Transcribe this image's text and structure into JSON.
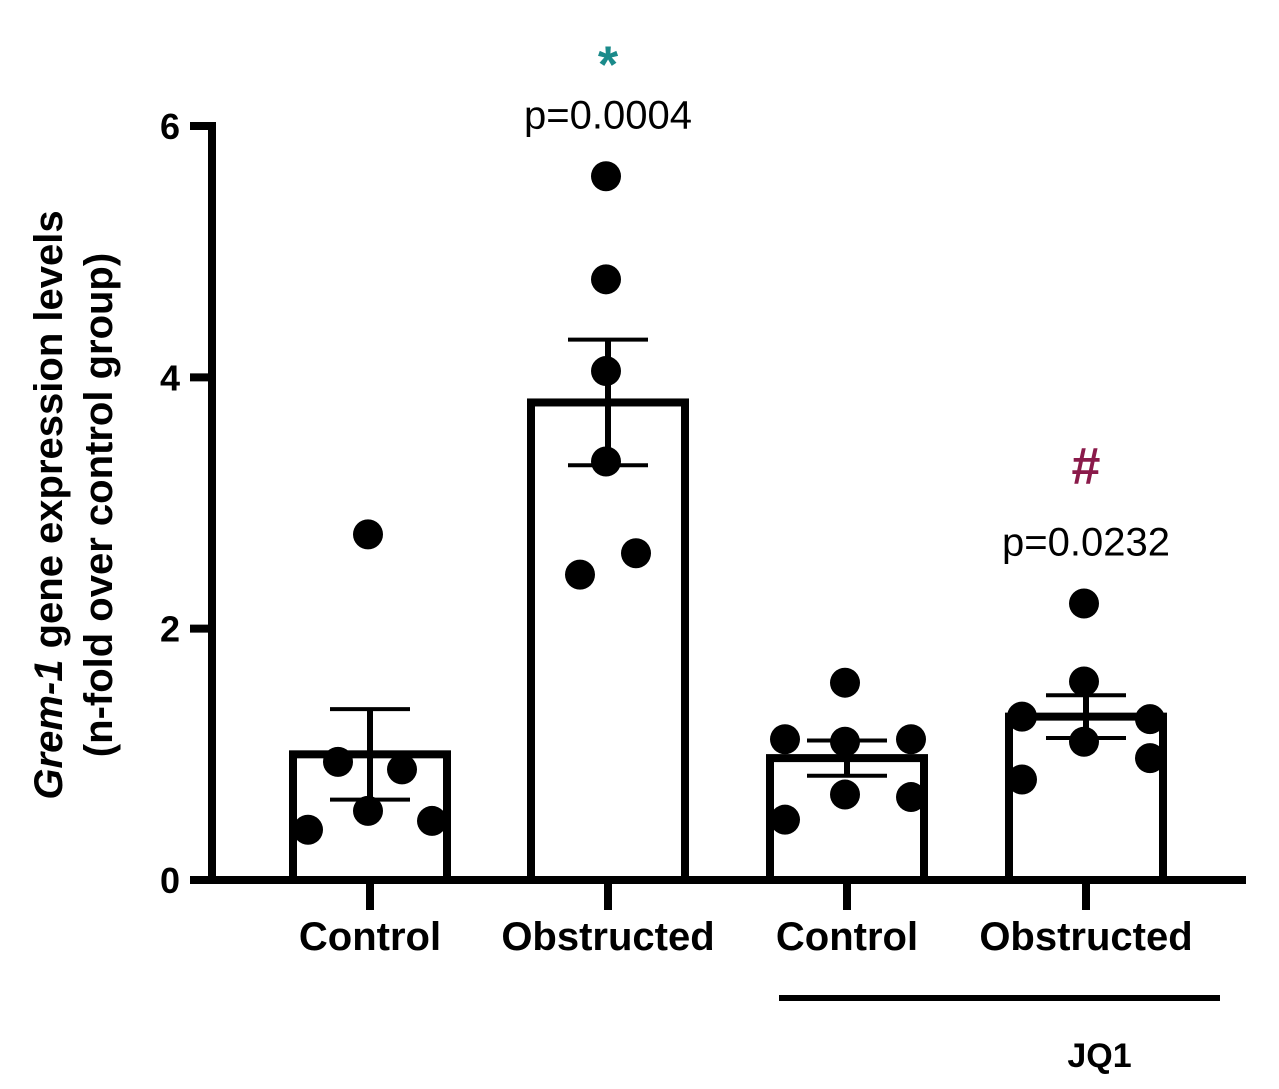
{
  "chart_data": {
    "type": "bar",
    "title": "",
    "xlabel": "",
    "ylabel_italic": "Grem-1",
    "ylabel_rest": " gene expression levels",
    "ylabel_line2": "(n-fold over control group)",
    "ylim": [
      0,
      6
    ],
    "yticks": [
      0,
      2,
      4,
      6
    ],
    "categories": [
      "Control",
      "Obstructed",
      "Control",
      "Obstructed"
    ],
    "values": [
      1.0,
      3.8,
      0.97,
      1.3
    ],
    "sem": [
      0.36,
      0.5,
      0.14,
      0.17
    ],
    "points": [
      [
        0.4,
        0.55,
        0.94,
        0.88,
        0.47,
        2.75
      ],
      [
        2.43,
        3.33,
        4.05,
        4.78,
        5.6,
        2.6
      ],
      [
        0.48,
        1.12,
        0.68,
        1.1,
        1.57,
        0.66,
        1.12
      ],
      [
        0.8,
        1.3,
        1.1,
        1.58,
        2.2,
        1.28,
        0.97
      ]
    ],
    "group_label": "JQ1",
    "group_span": [
      2,
      3
    ],
    "annotations": [
      {
        "category_index": 1,
        "symbol": "*",
        "color": "#1a8a8a",
        "pvalue": "p=0.0004"
      },
      {
        "category_index": 3,
        "symbol": "#",
        "color": "#8a1a4a",
        "pvalue": "p=0.0232"
      }
    ]
  }
}
